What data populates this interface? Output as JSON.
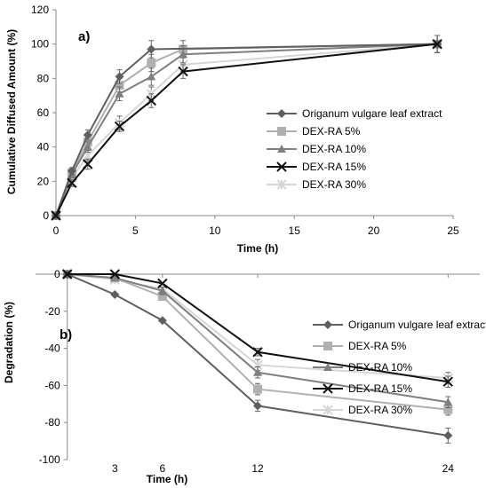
{
  "chart_data": [
    {
      "type": "line",
      "panel_label": "a)",
      "xlabel": "Time (h)",
      "ylabel": "Cumulative Diffused Amount (%)",
      "xlim": [
        0,
        25
      ],
      "ylim": [
        0,
        120
      ],
      "xticks": [
        0,
        5,
        10,
        15,
        20,
        25
      ],
      "yticks": [
        0,
        20,
        40,
        60,
        80,
        100,
        120
      ],
      "x": [
        0,
        1,
        2,
        4,
        6,
        8,
        24
      ],
      "legend_position": "right",
      "series": [
        {
          "name": "Origanum vulgare leaf extract",
          "color": "#5f5f5f",
          "marker": "diamond",
          "values": [
            0,
            26,
            47,
            81,
            97,
            null,
            100
          ],
          "err": [
            0,
            2,
            3,
            4,
            5,
            0,
            5
          ]
        },
        {
          "name": "DEX-RA 5%",
          "color": "#b0b0b0",
          "marker": "square",
          "values": [
            0,
            25,
            43,
            76,
            89,
            97,
            100
          ],
          "err": [
            0,
            2,
            3,
            4,
            5,
            5,
            5
          ]
        },
        {
          "name": "DEX-RA 10%",
          "color": "#7f7f7f",
          "marker": "triangle",
          "values": [
            0,
            24,
            40,
            71,
            81,
            94,
            100
          ],
          "err": [
            0,
            2,
            3,
            4,
            5,
            5,
            5
          ]
        },
        {
          "name": "DEX-RA 15%",
          "color": "#111111",
          "marker": "x",
          "values": [
            0,
            19,
            30,
            52,
            67,
            84,
            100
          ],
          "err": [
            0,
            2,
            3,
            3,
            4,
            4,
            5
          ]
        },
        {
          "name": "DEX-RA 30%",
          "color": "#d6d6d6",
          "marker": "star",
          "values": [
            0,
            22,
            35,
            54,
            71,
            88,
            100
          ],
          "err": [
            0,
            2,
            3,
            4,
            4,
            4,
            5
          ]
        }
      ]
    },
    {
      "type": "line",
      "panel_label": "b)",
      "xlabel": "Time (h)",
      "ylabel": "Degradation (%)",
      "xlim": [
        -2,
        26
      ],
      "ylim": [
        -100,
        0
      ],
      "xticks": [
        3,
        6,
        12,
        24
      ],
      "yticks": [
        0,
        -20,
        -40,
        -60,
        -80,
        -100
      ],
      "x": [
        0,
        3,
        6,
        12,
        24
      ],
      "legend_position": "right",
      "series": [
        {
          "name": "Origanum vulgare leaf extract",
          "color": "#5f5f5f",
          "marker": "diamond",
          "values": [
            0,
            -11,
            -25,
            -71,
            -87
          ],
          "err": [
            0,
            0,
            0,
            3,
            4
          ]
        },
        {
          "name": "DEX-RA 5%",
          "color": "#b0b0b0",
          "marker": "square",
          "values": [
            0,
            -2,
            -12,
            -62,
            -73
          ],
          "err": [
            0,
            0,
            2,
            3,
            3
          ]
        },
        {
          "name": "DEX-RA 10%",
          "color": "#7f7f7f",
          "marker": "triangle",
          "values": [
            0,
            -2,
            -9,
            -53,
            -69
          ],
          "err": [
            0,
            0,
            2,
            3,
            3
          ]
        },
        {
          "name": "DEX-RA 15%",
          "color": "#111111",
          "marker": "x",
          "values": [
            0,
            0,
            -5,
            -42,
            -58
          ],
          "err": [
            0,
            0,
            0,
            2,
            3
          ]
        },
        {
          "name": "DEX-RA 30%",
          "color": "#d6d6d6",
          "marker": "star",
          "values": [
            0,
            -3,
            -8,
            -49,
            -56
          ],
          "err": [
            0,
            0,
            2,
            3,
            3
          ]
        }
      ]
    }
  ]
}
